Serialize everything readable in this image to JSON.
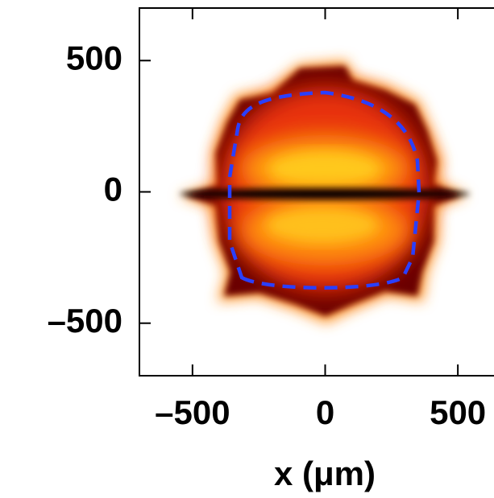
{
  "chart_data": {
    "type": "heatmap",
    "x_label": "x (μm)",
    "xlim": [
      -700,
      700
    ],
    "ylim": [
      -700,
      700
    ],
    "xticks": [
      {
        "value": -500,
        "label": "–500"
      },
      0,
      500
    ],
    "yticks": [
      {
        "value": -500,
        "label": "–500"
      },
      0,
      500
    ]
  }
}
